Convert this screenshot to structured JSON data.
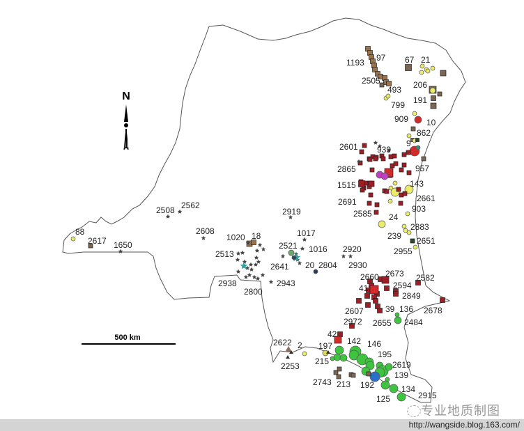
{
  "map": {
    "north_label": "N",
    "scale_label": "500 km",
    "point_labels": [
      "97",
      "1193",
      "67",
      "21",
      "2505",
      "493",
      "206",
      "799",
      "191",
      "909",
      "10",
      "862",
      "9",
      "2601",
      "939",
      "2865",
      "957",
      "1515",
      "143",
      "2691",
      "2661",
      "903",
      "2585",
      "24",
      "2883",
      "239",
      "2651",
      "2955",
      "2920",
      "2930",
      "2508",
      "2562",
      "2919",
      "2608",
      "1017",
      "1020",
      "18",
      "2521",
      "1016",
      "2513",
      "2641",
      "20",
      "2804",
      "2938",
      "2943",
      "2800",
      "88",
      "2617",
      "1650",
      "2660",
      "2673",
      "2582",
      "41",
      "2594",
      "2849",
      "2607",
      "39",
      "136",
      "2678",
      "2972",
      "2655",
      "2484",
      "42",
      "2622",
      "2",
      "197",
      "142",
      "146",
      "195",
      "215",
      "2253",
      "2619",
      "139",
      "2743",
      "213",
      "192",
      "134",
      "125",
      "2915"
    ],
    "colors": {
      "border": "#555555",
      "brown_square": "#7a6652",
      "tan_square": "#9c7248",
      "dark_red_square": "#9e1e26",
      "red": "#d32a2a",
      "yellow": "#ecec6a",
      "green": "#3fc43f",
      "magenta": "#c23fc2",
      "blue": "#2a6fc9",
      "star": "#444444",
      "teal_star": "#2aa3a3"
    }
  },
  "watermark": {
    "text": "专业地质制图",
    "url": "http://wangside.blog.163.com/"
  }
}
